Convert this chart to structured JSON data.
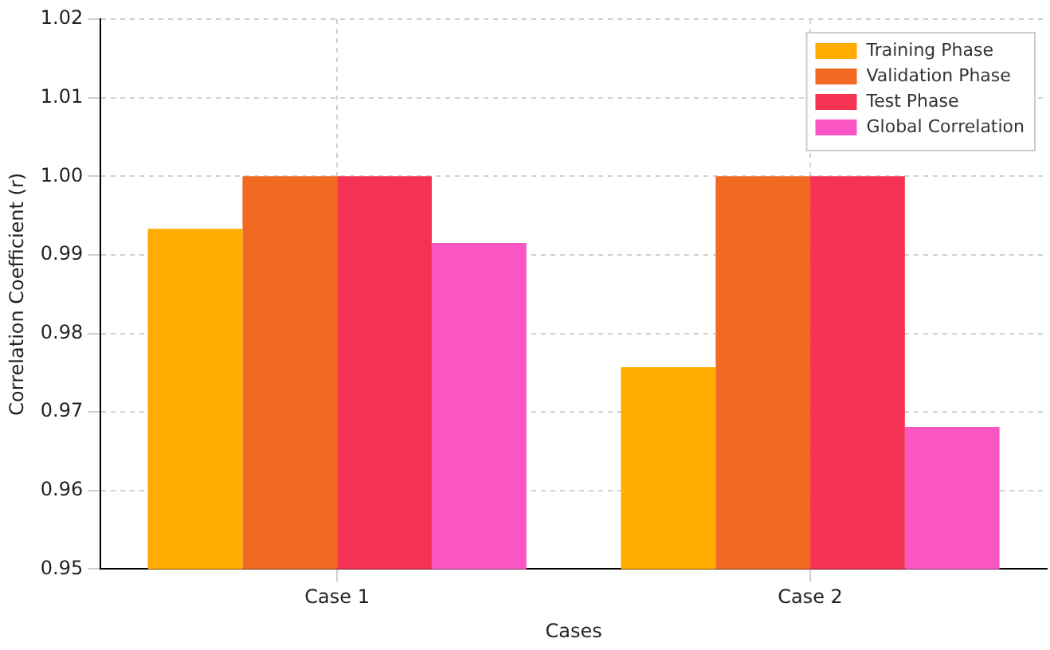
{
  "chart_data": {
    "type": "bar",
    "xlabel": "Cases",
    "ylabel": "Correlation Coefficient (r)",
    "categories": [
      "Case 1",
      "Case 2"
    ],
    "series": [
      {
        "name": "Training Phase",
        "color": "#ffab00",
        "values": [
          0.9933,
          0.9757
        ]
      },
      {
        "name": "Validation Phase",
        "color": "#f26a21",
        "values": [
          1.0,
          1.0
        ]
      },
      {
        "name": "Test Phase",
        "color": "#f53154",
        "values": [
          1.0,
          1.0
        ]
      },
      {
        "name": "Global Correlation",
        "color": "#f955c3",
        "values": [
          0.9915,
          0.9681
        ]
      }
    ],
    "ylim": [
      0.95,
      1.02
    ],
    "yticks": [
      0.95,
      0.96,
      0.97,
      0.98,
      0.99,
      {
        "value": 1.0,
        "label": "1.00"
      },
      1.01,
      1.02
    ],
    "grid": true,
    "legend": "top right"
  }
}
